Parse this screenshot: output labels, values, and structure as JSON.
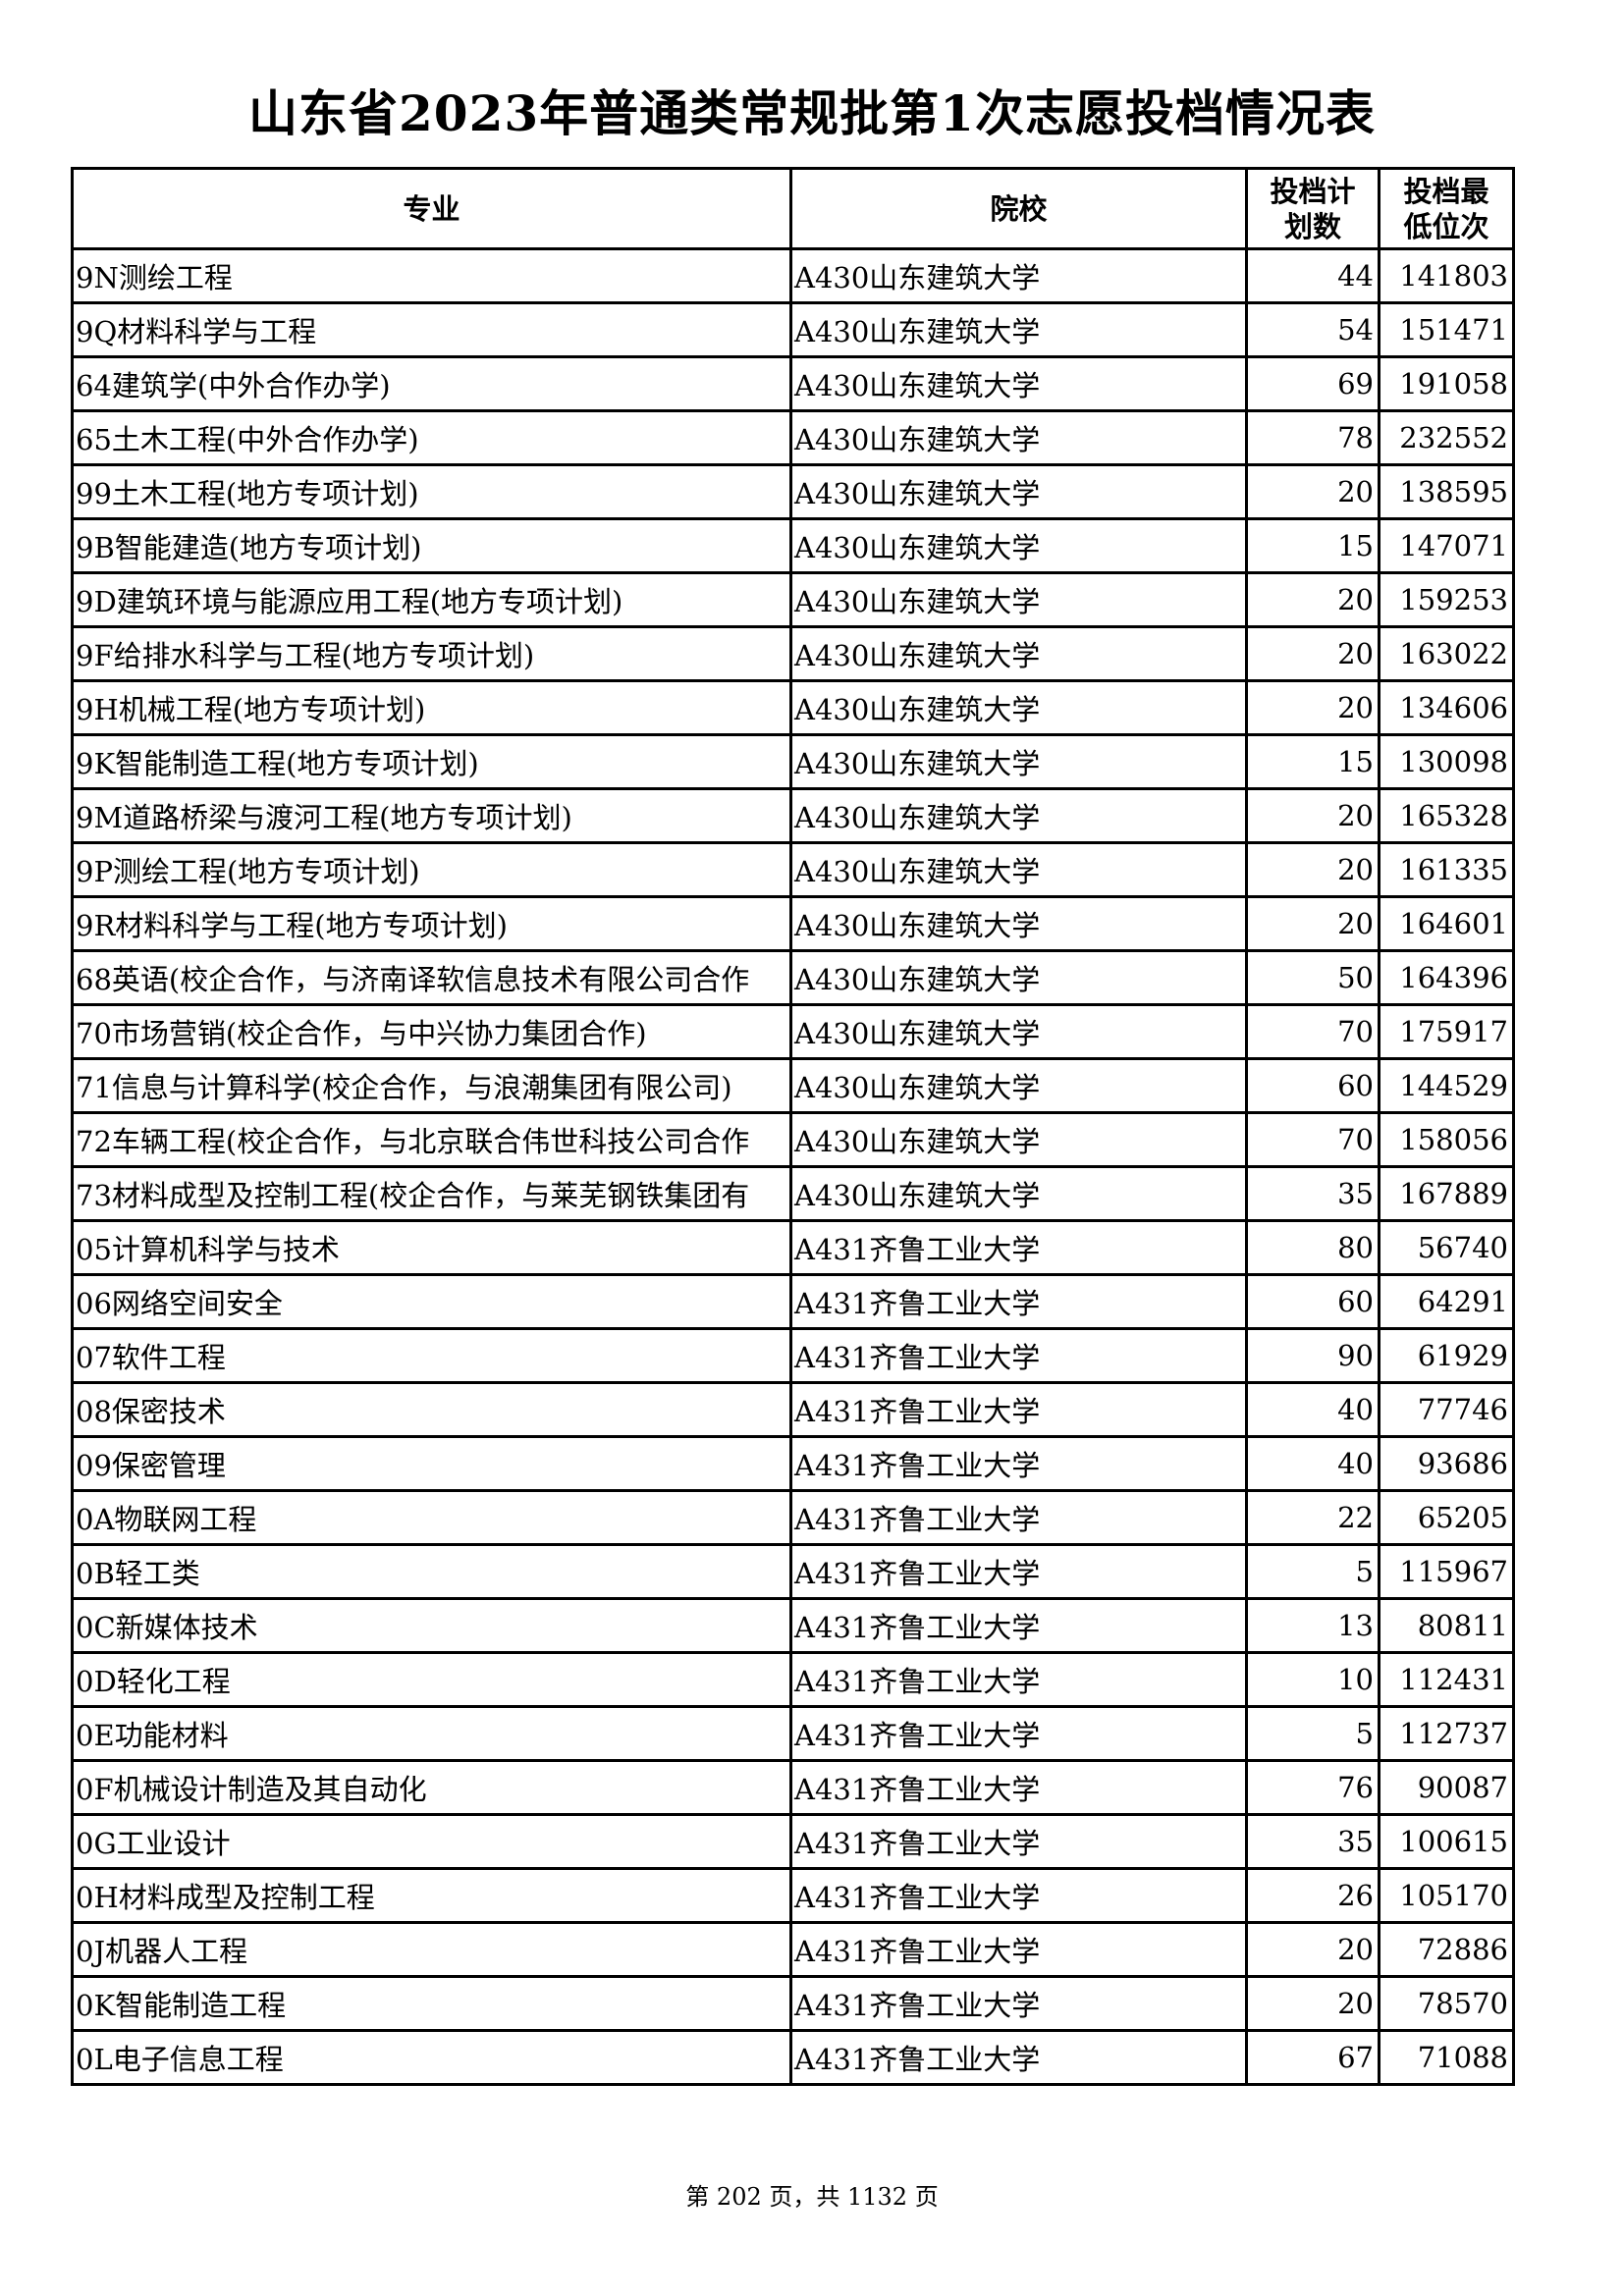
{
  "title": "山东省2023年普通类常规批第1次志愿投档情况表",
  "headers": {
    "major": "专业",
    "school": "院校",
    "plan": "投档计\n划数",
    "min_rank": "投档最\n低位次"
  },
  "rows": [
    {
      "major": "9N测绘工程",
      "school": "A430山东建筑大学",
      "plan": "44",
      "min_rank": "141803"
    },
    {
      "major": "9Q材料科学与工程",
      "school": "A430山东建筑大学",
      "plan": "54",
      "min_rank": "151471"
    },
    {
      "major": "64建筑学(中外合作办学)",
      "school": "A430山东建筑大学",
      "plan": "69",
      "min_rank": "191058"
    },
    {
      "major": "65土木工程(中外合作办学)",
      "school": "A430山东建筑大学",
      "plan": "78",
      "min_rank": "232552"
    },
    {
      "major": "99土木工程(地方专项计划)",
      "school": "A430山东建筑大学",
      "plan": "20",
      "min_rank": "138595"
    },
    {
      "major": "9B智能建造(地方专项计划)",
      "school": "A430山东建筑大学",
      "plan": "15",
      "min_rank": "147071"
    },
    {
      "major": "9D建筑环境与能源应用工程(地方专项计划)",
      "school": "A430山东建筑大学",
      "plan": "20",
      "min_rank": "159253"
    },
    {
      "major": "9F给排水科学与工程(地方专项计划)",
      "school": "A430山东建筑大学",
      "plan": "20",
      "min_rank": "163022"
    },
    {
      "major": "9H机械工程(地方专项计划)",
      "school": "A430山东建筑大学",
      "plan": "20",
      "min_rank": "134606"
    },
    {
      "major": "9K智能制造工程(地方专项计划)",
      "school": "A430山东建筑大学",
      "plan": "15",
      "min_rank": "130098"
    },
    {
      "major": "9M道路桥梁与渡河工程(地方专项计划)",
      "school": "A430山东建筑大学",
      "plan": "20",
      "min_rank": "165328"
    },
    {
      "major": "9P测绘工程(地方专项计划)",
      "school": "A430山东建筑大学",
      "plan": "20",
      "min_rank": "161335"
    },
    {
      "major": "9R材料科学与工程(地方专项计划)",
      "school": "A430山东建筑大学",
      "plan": "20",
      "min_rank": "164601"
    },
    {
      "major": "68英语(校企合作，与济南译软信息技术有限公司合作",
      "school": "A430山东建筑大学",
      "plan": "50",
      "min_rank": "164396"
    },
    {
      "major": "70市场营销(校企合作，与中兴协力集团合作)",
      "school": "A430山东建筑大学",
      "plan": "70",
      "min_rank": "175917"
    },
    {
      "major": "71信息与计算科学(校企合作，与浪潮集团有限公司)",
      "school": "A430山东建筑大学",
      "plan": "60",
      "min_rank": "144529"
    },
    {
      "major": "72车辆工程(校企合作，与北京联合伟世科技公司合作",
      "school": "A430山东建筑大学",
      "plan": "70",
      "min_rank": "158056"
    },
    {
      "major": "73材料成型及控制工程(校企合作，与莱芜钢铁集团有",
      "school": "A430山东建筑大学",
      "plan": "35",
      "min_rank": "167889"
    },
    {
      "major": "05计算机科学与技术",
      "school": "A431齐鲁工业大学",
      "plan": "80",
      "min_rank": "56740"
    },
    {
      "major": "06网络空间安全",
      "school": "A431齐鲁工业大学",
      "plan": "60",
      "min_rank": "64291"
    },
    {
      "major": "07软件工程",
      "school": "A431齐鲁工业大学",
      "plan": "90",
      "min_rank": "61929"
    },
    {
      "major": "08保密技术",
      "school": "A431齐鲁工业大学",
      "plan": "40",
      "min_rank": "77746"
    },
    {
      "major": "09保密管理",
      "school": "A431齐鲁工业大学",
      "plan": "40",
      "min_rank": "93686"
    },
    {
      "major": "0A物联网工程",
      "school": "A431齐鲁工业大学",
      "plan": "22",
      "min_rank": "65205"
    },
    {
      "major": "0B轻工类",
      "school": "A431齐鲁工业大学",
      "plan": "5",
      "min_rank": "115967"
    },
    {
      "major": "0C新媒体技术",
      "school": "A431齐鲁工业大学",
      "plan": "13",
      "min_rank": "80811"
    },
    {
      "major": "0D轻化工程",
      "school": "A431齐鲁工业大学",
      "plan": "10",
      "min_rank": "112431"
    },
    {
      "major": "0E功能材料",
      "school": "A431齐鲁工业大学",
      "plan": "5",
      "min_rank": "112737"
    },
    {
      "major": "0F机械设计制造及其自动化",
      "school": "A431齐鲁工业大学",
      "plan": "76",
      "min_rank": "90087"
    },
    {
      "major": "0G工业设计",
      "school": "A431齐鲁工业大学",
      "plan": "35",
      "min_rank": "100615"
    },
    {
      "major": "0H材料成型及控制工程",
      "school": "A431齐鲁工业大学",
      "plan": "26",
      "min_rank": "105170"
    },
    {
      "major": "0J机器人工程",
      "school": "A431齐鲁工业大学",
      "plan": "20",
      "min_rank": "72886"
    },
    {
      "major": "0K智能制造工程",
      "school": "A431齐鲁工业大学",
      "plan": "20",
      "min_rank": "78570"
    },
    {
      "major": "0L电子信息工程",
      "school": "A431齐鲁工业大学",
      "plan": "67",
      "min_rank": "71088"
    }
  ],
  "footer": "第 202 页，共 1132 页"
}
